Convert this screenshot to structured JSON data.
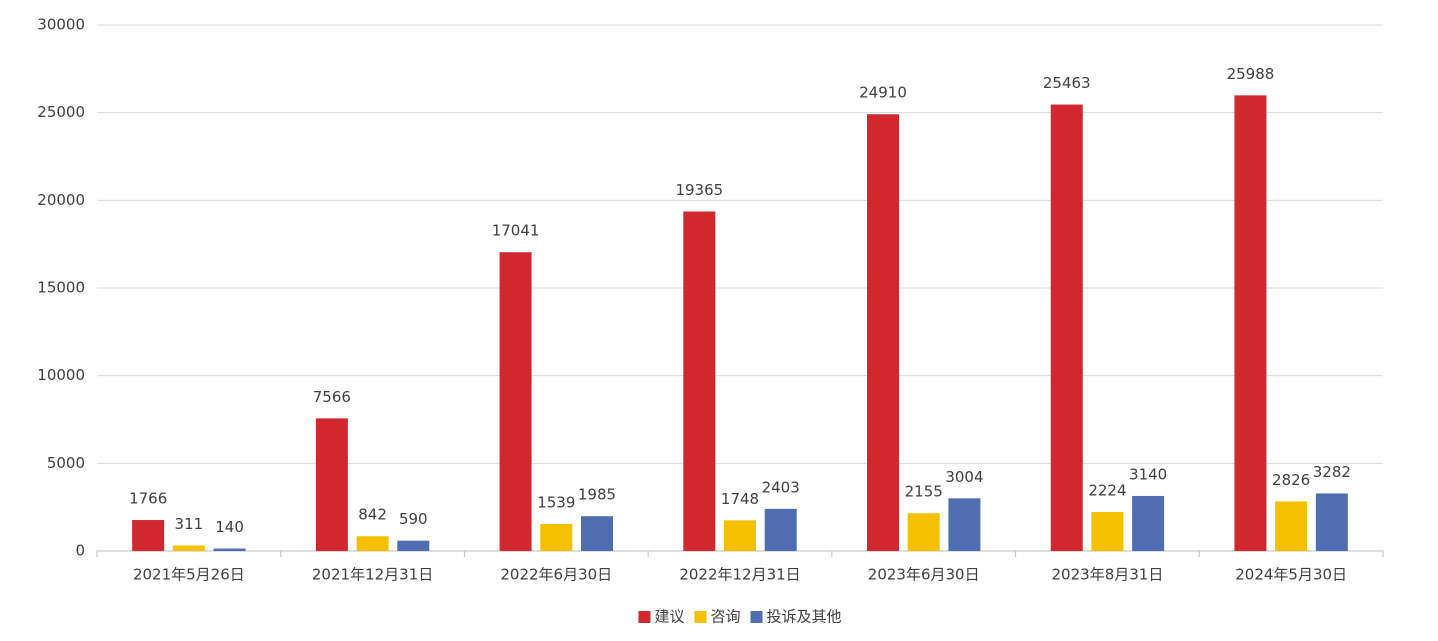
{
  "chart_data": {
    "type": "bar",
    "categories": [
      "2021年5月26日",
      "2021年12月31日",
      "2022年6月30日",
      "2022年12月31日",
      "2023年6月30日",
      "2023年8月31日",
      "2024年5月30日"
    ],
    "series": [
      {
        "name": "建议",
        "color": "#d0282e",
        "values": [
          1766,
          7566,
          17041,
          19365,
          24910,
          25463,
          25988
        ]
      },
      {
        "name": "咨询",
        "color": "#f4c000",
        "values": [
          311,
          842,
          1539,
          1748,
          2155,
          2224,
          2826
        ]
      },
      {
        "name": "投诉及其他",
        "color": "#4f6db0",
        "values": [
          140,
          590,
          1985,
          2403,
          3004,
          3140,
          3282
        ]
      }
    ],
    "ylim": [
      0,
      30000
    ],
    "yticks": [
      0,
      5000,
      10000,
      15000,
      20000,
      25000,
      30000
    ],
    "grid": true,
    "legend": "bottom"
  }
}
